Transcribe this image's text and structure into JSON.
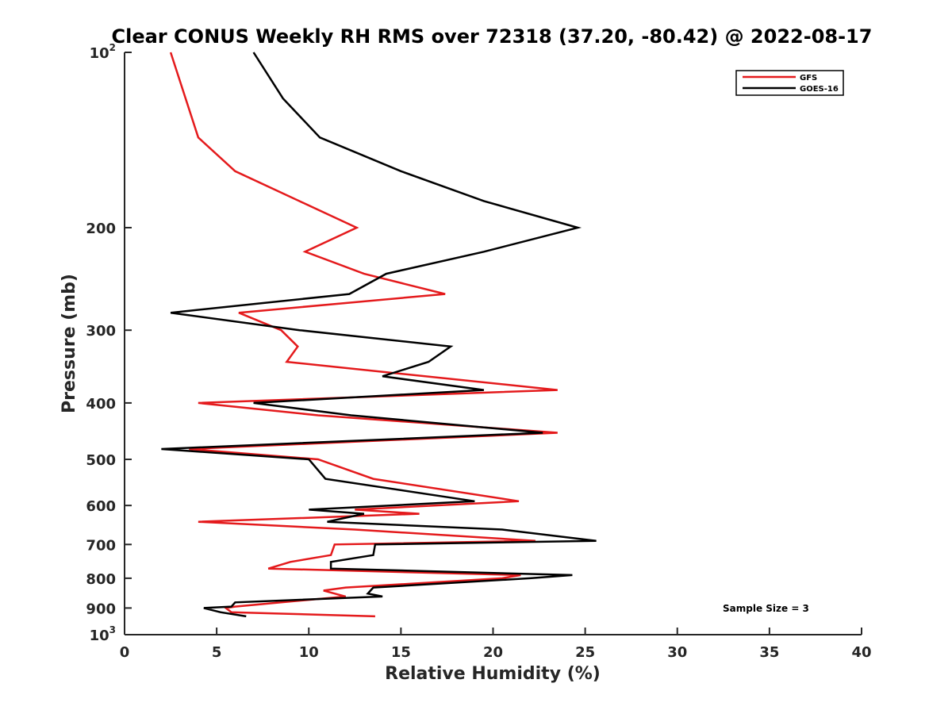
{
  "chart_data": {
    "type": "line",
    "title": "Clear CONUS Weekly RH RMS over 72318 (37.20, -80.42) @ 2022-08-17",
    "xlabel": "Relative Humidity (%)",
    "ylabel": "Pressure (mb)",
    "xlim": [
      0,
      40
    ],
    "ylim": [
      1000,
      100
    ],
    "yscale": "log",
    "y_reversed": true,
    "x_ticks": [
      0,
      5,
      10,
      15,
      20,
      25,
      30,
      35,
      40
    ],
    "y_ticks": [
      {
        "value": 100,
        "base": "10",
        "exp": "2"
      },
      {
        "value": 200,
        "label": "200"
      },
      {
        "value": 300,
        "label": "300"
      },
      {
        "value": 400,
        "label": "400"
      },
      {
        "value": 500,
        "label": "500"
      },
      {
        "value": 600,
        "label": "600"
      },
      {
        "value": 700,
        "label": "700"
      },
      {
        "value": 800,
        "label": "800"
      },
      {
        "value": 900,
        "label": "900"
      },
      {
        "value": 1000,
        "base": "10",
        "exp": "3"
      }
    ],
    "grid": false,
    "legend_position": "top-right",
    "annotation": "Sample Size = 3",
    "series": [
      {
        "name": "GFS",
        "color": "#e41a1c",
        "points": [
          [
            2.5,
            100
          ],
          [
            4.0,
            140
          ],
          [
            6.0,
            160
          ],
          [
            12.6,
            200
          ],
          [
            9.8,
            220
          ],
          [
            13.0,
            240
          ],
          [
            17.4,
            260
          ],
          [
            6.2,
            280
          ],
          [
            8.5,
            300
          ],
          [
            9.4,
            320
          ],
          [
            8.8,
            340
          ],
          [
            23.5,
            380
          ],
          [
            4.0,
            400
          ],
          [
            10.5,
            420
          ],
          [
            23.5,
            450
          ],
          [
            3.5,
            480
          ],
          [
            10.5,
            500
          ],
          [
            13.5,
            540
          ],
          [
            21.4,
            590
          ],
          [
            12.5,
            610
          ],
          [
            16.0,
            620
          ],
          [
            4.0,
            640
          ],
          [
            12.5,
            660
          ],
          [
            22.3,
            690
          ],
          [
            11.4,
            700
          ],
          [
            11.2,
            730
          ],
          [
            9.0,
            750
          ],
          [
            7.8,
            770
          ],
          [
            21.5,
            790
          ],
          [
            20.5,
            800
          ],
          [
            12.0,
            830
          ],
          [
            10.8,
            840
          ],
          [
            12.0,
            860
          ],
          [
            8.5,
            880
          ],
          [
            6.0,
            895
          ],
          [
            5.5,
            900
          ],
          [
            5.8,
            915
          ],
          [
            13.6,
            930
          ]
        ]
      },
      {
        "name": "GOES-16",
        "color": "#000000",
        "points": [
          [
            7.0,
            100
          ],
          [
            8.6,
            120
          ],
          [
            10.6,
            140
          ],
          [
            15.0,
            160
          ],
          [
            19.5,
            180
          ],
          [
            24.6,
            200
          ],
          [
            19.5,
            220
          ],
          [
            14.2,
            240
          ],
          [
            12.2,
            260
          ],
          [
            2.5,
            280
          ],
          [
            9.5,
            300
          ],
          [
            17.7,
            320
          ],
          [
            16.5,
            340
          ],
          [
            14.0,
            360
          ],
          [
            19.5,
            380
          ],
          [
            7.0,
            400
          ],
          [
            12.3,
            420
          ],
          [
            22.7,
            450
          ],
          [
            2.0,
            480
          ],
          [
            10.0,
            500
          ],
          [
            10.9,
            540
          ],
          [
            19.0,
            590
          ],
          [
            10.0,
            610
          ],
          [
            13.0,
            620
          ],
          [
            11.0,
            640
          ],
          [
            20.5,
            660
          ],
          [
            25.6,
            690
          ],
          [
            13.6,
            700
          ],
          [
            13.5,
            730
          ],
          [
            11.2,
            750
          ],
          [
            11.2,
            770
          ],
          [
            24.3,
            790
          ],
          [
            22.0,
            800
          ],
          [
            13.5,
            830
          ],
          [
            13.2,
            850
          ],
          [
            14.0,
            860
          ],
          [
            6.0,
            880
          ],
          [
            5.8,
            895
          ],
          [
            4.3,
            900
          ],
          [
            5.2,
            915
          ],
          [
            6.6,
            930
          ]
        ]
      }
    ]
  }
}
